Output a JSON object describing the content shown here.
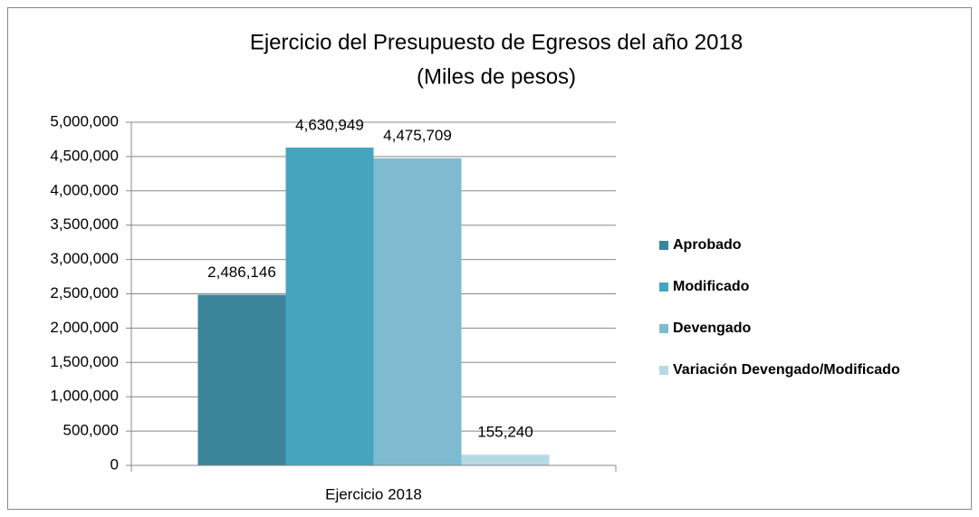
{
  "chart_data": {
    "type": "bar",
    "title": "Ejercicio del Presupuesto de Egresos del año 2018",
    "subtitle": "(Miles de pesos)",
    "categories": [
      "Ejercicio 2018"
    ],
    "series": [
      {
        "name": "Aprobado",
        "color": "#3a8599",
        "values": [
          2486146
        ],
        "value_labels": [
          "2,486,146"
        ]
      },
      {
        "name": "Modificado",
        "color": "#45a5be",
        "values": [
          4630949
        ],
        "value_labels": [
          "4,630,949"
        ]
      },
      {
        "name": "Devengado",
        "color": "#7fbbd0",
        "values": [
          4475709
        ],
        "value_labels": [
          "4,475,709"
        ]
      },
      {
        "name": "Variación Devengado/Modificado",
        "color": "#b7d9e3",
        "values": [
          155240
        ],
        "value_labels": [
          "155,240"
        ]
      }
    ],
    "ylim": [
      0,
      5000000
    ],
    "yticks": [
      0,
      {
        "value": 500000,
        "label": "500,000"
      },
      {
        "value": 1000000,
        "label": "1,000,000"
      },
      {
        "value": 1500000,
        "label": "1,500,000"
      },
      {
        "value": 2000000,
        "label": "2,000,000"
      },
      {
        "value": 2500000,
        "label": "2,500,000"
      },
      {
        "value": 3000000,
        "label": "3,000,000"
      },
      {
        "value": 3500000,
        "label": "3,500,000"
      },
      {
        "value": 4000000,
        "label": "4,000,000"
      },
      {
        "value": 4500000,
        "label": "4,500,000"
      },
      {
        "value": 5000000,
        "label": "5,000,000"
      }
    ],
    "grid": true,
    "legend": "right"
  }
}
